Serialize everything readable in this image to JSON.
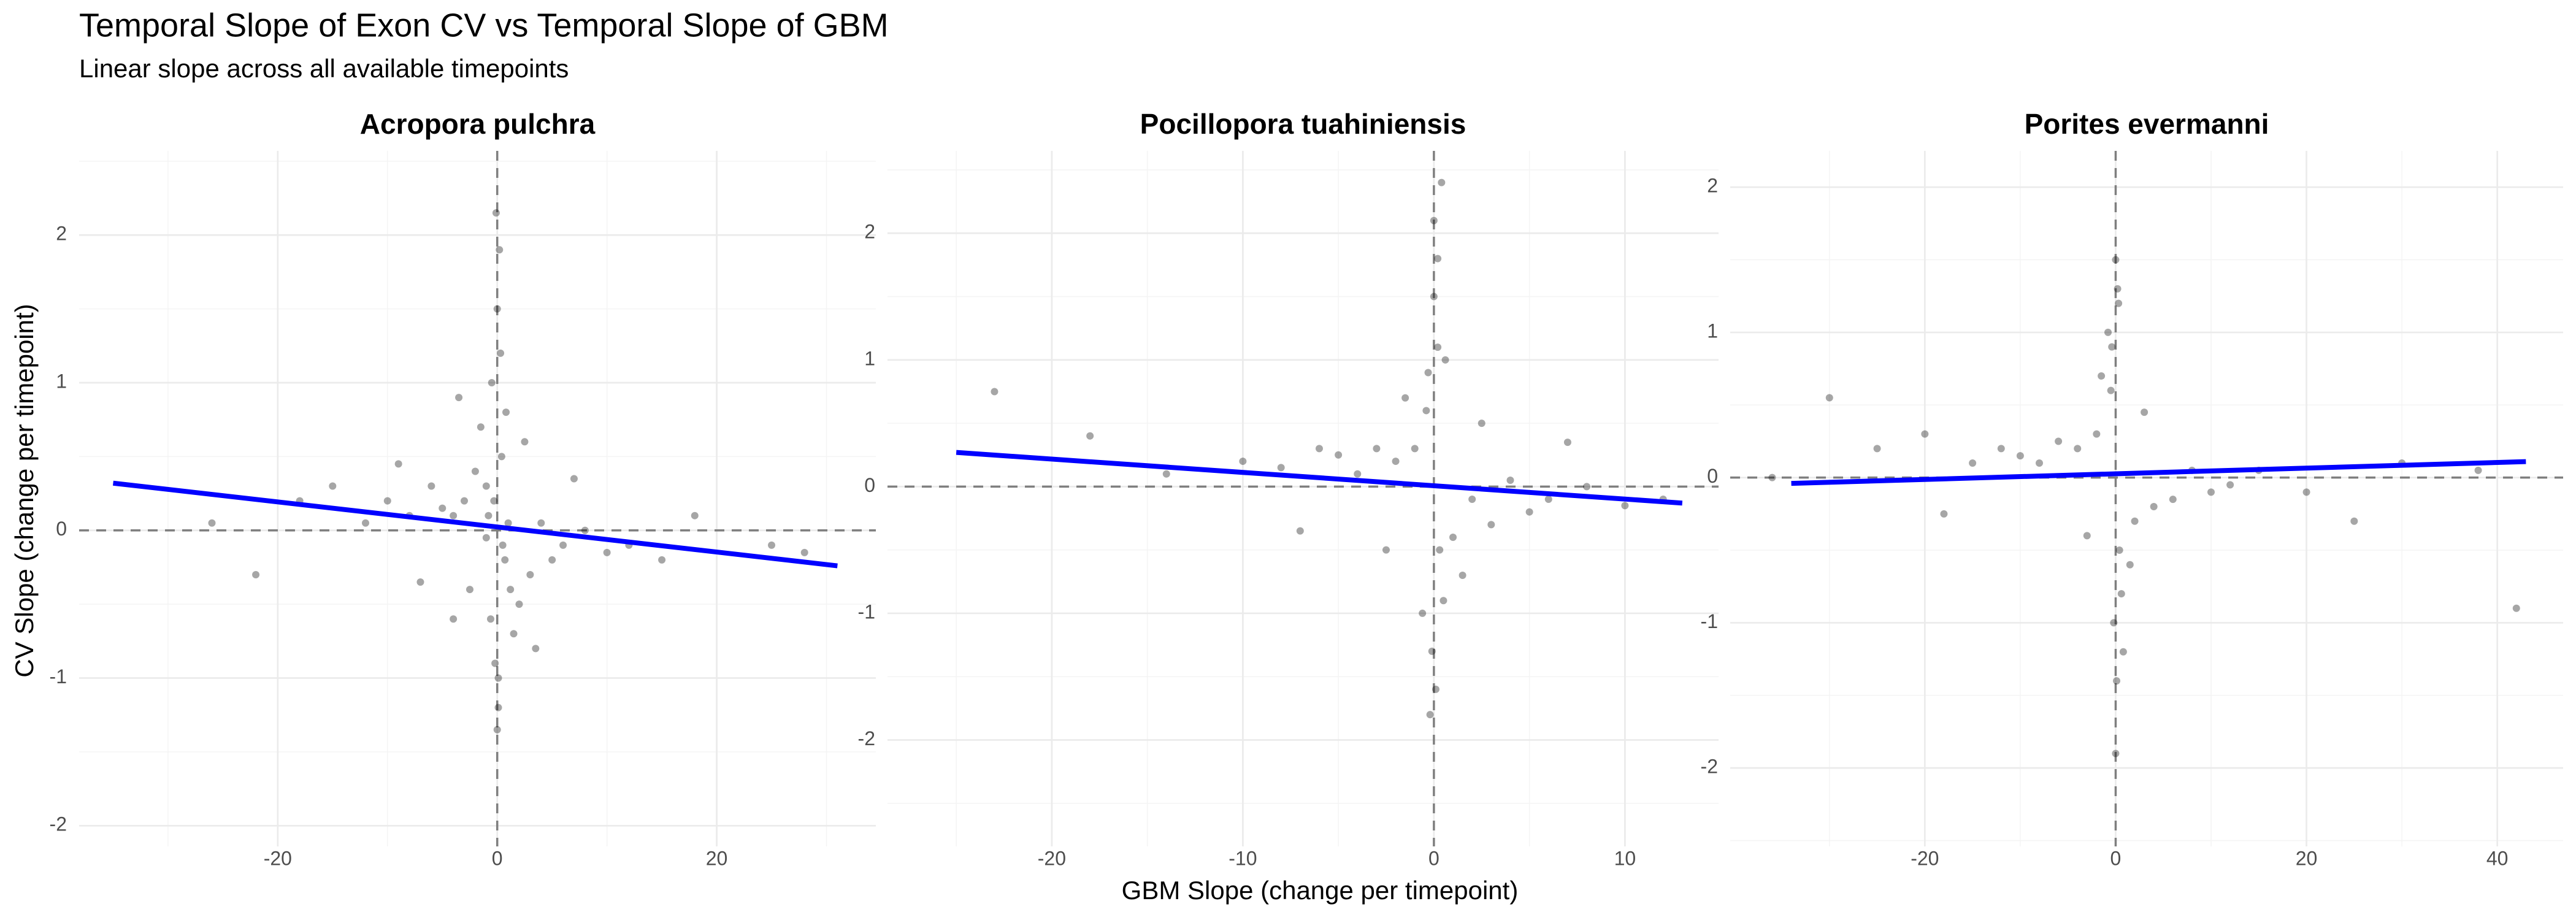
{
  "title": "Temporal Slope of Exon CV vs Temporal Slope of GBM",
  "subtitle": "Linear slope across all available timepoints",
  "x_label": "GBM Slope (change per timepoint)",
  "y_label": "CV Slope (change per timepoint)",
  "chart_data": [
    {
      "type": "scatter",
      "title": "Acropora pulchra",
      "color": "#000000",
      "x": [
        0,
        0.3,
        -0.5,
        0.8,
        -0.2,
        0.1,
        -0.6,
        0.4,
        0,
        0.2,
        -1,
        1.2,
        -0.3,
        0.5,
        -2,
        2,
        -3,
        3,
        -4,
        4,
        -5,
        5,
        -6,
        6,
        -8,
        8,
        -10,
        10,
        -12,
        12,
        -15,
        15,
        -18,
        18,
        -22,
        25,
        -1.5,
        1.5,
        -2.5,
        2.5,
        -0.8,
        0.7,
        -0.1,
        0.1,
        -7,
        7,
        -3.5,
        3.5,
        -9,
        -26,
        28,
        -4,
        -1,
        1
      ],
      "values": [
        1.5,
        1.2,
        1.0,
        0.8,
        -0.9,
        -1.2,
        -0.6,
        0.5,
        -1.35,
        1.9,
        0.3,
        -0.4,
        0.2,
        -0.1,
        0.4,
        -0.5,
        0.2,
        -0.3,
        0.1,
        0.05,
        0.15,
        -0.2,
        0.3,
        -0.1,
        0.1,
        0.0,
        0.2,
        -0.15,
        0.05,
        -0.1,
        0.3,
        -0.2,
        0.2,
        0.1,
        -0.3,
        -0.1,
        0.7,
        -0.7,
        -0.4,
        0.6,
        0.1,
        -0.2,
        2.15,
        -1.0,
        -0.35,
        0.35,
        0.9,
        -0.8,
        0.45,
        0.05,
        -0.15,
        -0.6,
        -0.05,
        0.05
      ],
      "fit": {
        "x": [
          -35,
          31
        ],
        "values": [
          0.32,
          -0.24
        ],
        "color": "#0000ff"
      },
      "ref_lines": {
        "x": 0,
        "y": 0
      },
      "xlim": [
        -38.1,
        34.5
      ],
      "ylim": [
        -2.14,
        2.57
      ],
      "xticks": [
        -20,
        0,
        20
      ],
      "yticks": [
        -2,
        -1,
        0,
        1,
        2
      ],
      "x_minor_ticks": [
        -30,
        -10,
        10,
        30
      ],
      "y_minor_ticks": [
        -1.5,
        -0.5,
        0.5,
        1.5,
        2.5
      ],
      "grid": true
    },
    {
      "type": "scatter",
      "title": "Pocillopora tuahiniensis",
      "color": "#000000",
      "x": [
        0,
        0.2,
        -0.3,
        0.5,
        -0.1,
        0.1,
        -0.4,
        0.3,
        0,
        0.2,
        -1,
        1,
        -2,
        2,
        -3,
        3,
        -4,
        4,
        -5,
        5,
        -6,
        6,
        -8,
        8,
        -10,
        10,
        -14,
        -18,
        -23,
        -1.5,
        1.5,
        -0.6,
        0.6,
        -0.2,
        0.4,
        -2.5,
        2.5,
        -7,
        7,
        12
      ],
      "values": [
        1.5,
        1.1,
        0.9,
        -0.9,
        -1.3,
        -1.6,
        0.6,
        -0.5,
        2.1,
        1.8,
        0.3,
        -0.4,
        0.2,
        -0.1,
        0.3,
        -0.3,
        0.1,
        0.05,
        0.25,
        -0.2,
        0.3,
        -0.1,
        0.15,
        0.0,
        0.2,
        -0.15,
        0.1,
        0.4,
        0.75,
        0.7,
        -0.7,
        -1.0,
        1.0,
        -1.8,
        2.4,
        -0.5,
        0.5,
        -0.35,
        0.35,
        -0.1
      ],
      "fit": {
        "x": [
          -25,
          13
        ],
        "values": [
          0.27,
          -0.13
        ],
        "color": "#0000ff"
      },
      "ref_lines": {
        "x": 0,
        "y": 0
      },
      "xlim": [
        -28.6,
        14.9
      ],
      "ylim": [
        -2.84,
        2.65
      ],
      "xticks": [
        -20,
        -10,
        0,
        10
      ],
      "yticks": [
        -2,
        -1,
        0,
        1,
        2
      ],
      "x_minor_ticks": [
        -25,
        -15,
        -5,
        5
      ],
      "y_minor_ticks": [
        -2.5,
        -1.5,
        -0.5,
        0.5,
        1.5,
        2.5
      ],
      "grid": true
    },
    {
      "type": "scatter",
      "title": "Porites evermanni",
      "color": "#000000",
      "x": [
        0,
        0.3,
        -0.4,
        0.6,
        -0.2,
        0.1,
        -0.5,
        0.4,
        0,
        0.2,
        -2,
        2,
        -4,
        4,
        -6,
        6,
        -8,
        8,
        -10,
        10,
        -12,
        12,
        -15,
        15,
        -20,
        20,
        -25,
        25,
        -30,
        30,
        -36,
        42,
        -1.5,
        1.5,
        -3,
        3,
        -0.8,
        0.8,
        38,
        -18
      ],
      "values": [
        1.5,
        1.2,
        0.9,
        -0.8,
        -1.0,
        -1.4,
        0.6,
        -0.5,
        -1.9,
        1.3,
        0.3,
        -0.3,
        0.2,
        -0.2,
        0.25,
        -0.15,
        0.1,
        0.05,
        0.15,
        -0.1,
        0.2,
        -0.05,
        0.1,
        0.05,
        0.3,
        -0.1,
        0.2,
        -0.3,
        0.55,
        0.1,
        0.0,
        -0.9,
        0.7,
        -0.6,
        -0.4,
        0.45,
        1.0,
        -1.2,
        0.05,
        -0.25
      ],
      "fit": {
        "x": [
          -34,
          43
        ],
        "values": [
          -0.04,
          0.11
        ],
        "color": "#0000ff"
      },
      "ref_lines": {
        "x": 0,
        "y": 0
      },
      "xlim": [
        -40.4,
        46.9
      ],
      "ylim": [
        -2.54,
        2.25
      ],
      "xticks": [
        -20,
        0,
        20,
        40
      ],
      "yticks": [
        -2,
        -1,
        0,
        1,
        2
      ],
      "x_minor_ticks": [
        -30,
        -10,
        10,
        30
      ],
      "y_minor_ticks": [
        -2.5,
        -1.5,
        -0.5,
        0.5,
        1.5
      ],
      "grid": true
    }
  ]
}
